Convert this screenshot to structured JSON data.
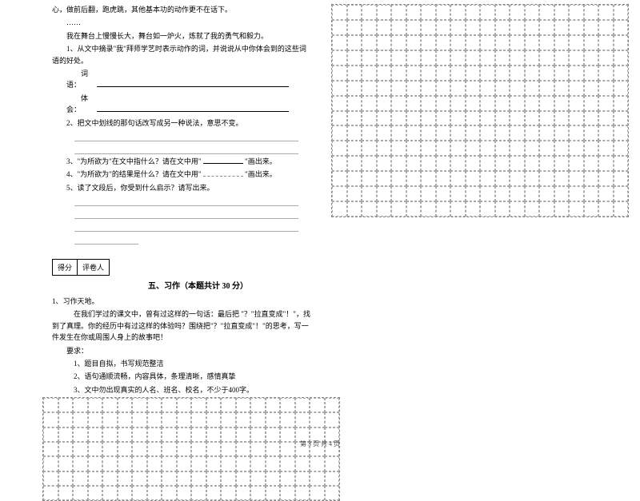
{
  "left": {
    "line1": "心，做前后翻，跑虎跳，其他基本功的动作更不在话下。",
    "ellipsis": "……",
    "line2": "我在舞台上慢慢长大，舞台如一炉火，炼就了我的勇气和毅力。",
    "q1": "1、从文中摘录\"我\"拜师学艺时表示动作的词，并说说从中你体会到的这些词语的好处。",
    "q1_wordlabel": "词语：",
    "q1_explabel": "体会：",
    "q2": "2、把文中划线的那句话改写成另一种说法，意思不变。",
    "q3a": "3、\"为所欲为\"在文中指什么？请在文中用\"",
    "q3b": "\"画出来。",
    "q4a": "4、\"为所欲为\"的结果是什么？请在文中用\"",
    "q4b": "\"画出来。",
    "q5": "5、读了文段后，你受到什么启示？请写出来。",
    "score_label": "得分",
    "reviewer_label": "评卷人",
    "section_title": "五、习作（本题共计 30 分）",
    "essay_num": "1、习作天地。",
    "essay_p1": "在我们学过的课文中，曾有过这样的一句话：最后把 \"？\"拉直变成\"！\"，找到了真理。你的经历中有过这样的体验吗？围绕把\"？\"拉直变成\"！\"的思考，写一件发生在你或周围人身上的故事吧！",
    "req_label": "要求：",
    "req1": "1、题目自拟，书写规范整洁",
    "req2": "2、语句通顺流畅，内容具体，条理清晰，感情真挚",
    "req3": "3、文中勿出现真实的人名、班名、校名，不少于400字。"
  },
  "footer": "第 3 页 共 4 页",
  "style": {
    "grid_dash_color": "#888888",
    "text_color": "#000000",
    "bg": "#ffffff"
  }
}
